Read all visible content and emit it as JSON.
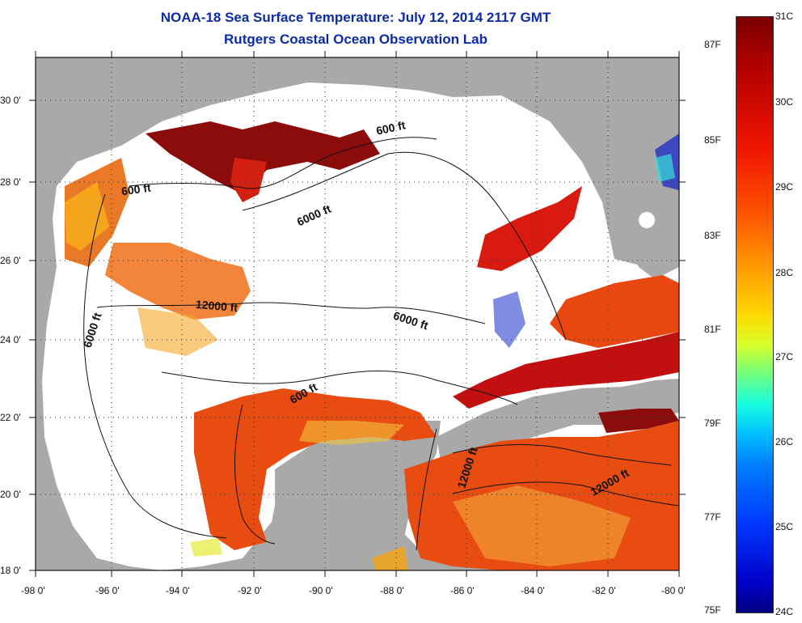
{
  "header": {
    "title": "NOAA-18 Sea Surface Temperature:  July 12, 2014 2117 GMT",
    "subtitle": "Rutgers Coastal Ocean Observation Lab"
  },
  "axes": {
    "latitude_labels": [
      "30 0'",
      "28 0'",
      "26 0'",
      "24 0'",
      "22 0'",
      "20 0'",
      "18 0'"
    ],
    "longitude_labels": [
      "-98 0'",
      "-96 0'",
      "-94 0'",
      "-92 0'",
      "-90 0'",
      "-88 0'",
      "-86 0'",
      "-84 0'",
      "-82 0'",
      "-80 0'"
    ]
  },
  "contours": [
    {
      "label": "600 ft"
    },
    {
      "label": "600 ft"
    },
    {
      "label": "6000 ft"
    },
    {
      "label": "6000 ft"
    },
    {
      "label": "6000 ft"
    },
    {
      "label": "12000 ft"
    },
    {
      "label": "600 ft"
    },
    {
      "label": "12000 ft"
    },
    {
      "label": "12000 ft"
    }
  ],
  "colorbar": {
    "fahrenheit": [
      "87F",
      "85F",
      "83F",
      "81F",
      "79F",
      "77F",
      "75F"
    ],
    "celsius": [
      "31C",
      "30C",
      "29C",
      "28C",
      "27C",
      "26C",
      "25C",
      "24C"
    ]
  },
  "colors": {
    "title": "#0d2aa8",
    "land": "#a9a9a9",
    "water_nodata": "#ffffff"
  }
}
